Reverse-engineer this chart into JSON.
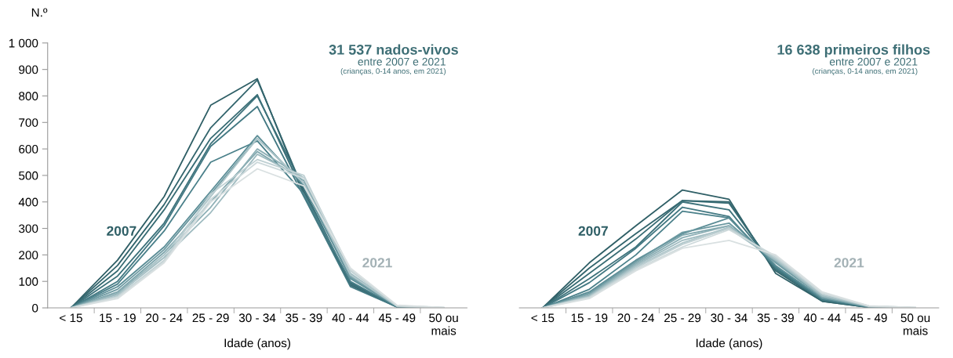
{
  "chart_data": [
    {
      "type": "line",
      "title": "31 537 nados-vivos",
      "subtitle": "entre 2007 e 2021",
      "ylabel": "N.º",
      "xlabel": "Idade (anos)",
      "annotations": [
        "(crianças, 0-14 anos, em 2021)",
        "2007",
        "2021"
      ],
      "categories": [
        "< 15",
        "15 - 19",
        "20 - 24",
        "25 - 29",
        "30 - 34",
        "35 - 39",
        "40 - 44",
        "45 - 49",
        "50 ou\nmais"
      ],
      "ylim": [
        0,
        1000
      ],
      "yticks": [
        0,
        100,
        200,
        300,
        400,
        500,
        600,
        700,
        800,
        900,
        {
          "value": 1000,
          "label": "1 000"
        }
      ],
      "grid": false,
      "legend": false,
      "marker": "none",
      "line_style": "solid",
      "series": [
        {
          "color": "#2f5f66",
          "values": [
            0,
            180,
            420,
            765,
            865,
            430,
            90,
            3,
            0
          ]
        },
        {
          "color": "#33656d",
          "values": [
            0,
            160,
            390,
            680,
            860,
            440,
            85,
            3,
            0
          ]
        },
        {
          "color": "#386c74",
          "values": [
            0,
            140,
            370,
            640,
            805,
            430,
            95,
            4,
            0
          ]
        },
        {
          "color": "#3d727b",
          "values": [
            0,
            120,
            320,
            620,
            800,
            450,
            90,
            4,
            0
          ]
        },
        {
          "color": "#437983",
          "values": [
            0,
            100,
            310,
            610,
            760,
            420,
            80,
            3,
            0
          ]
        },
        {
          "color": "#4a808a",
          "values": [
            0,
            90,
            290,
            550,
            630,
            430,
            100,
            4,
            0
          ]
        },
        {
          "color": "#5b8d96",
          "values": [
            0,
            80,
            230,
            440,
            650,
            460,
            110,
            5,
            0
          ]
        },
        {
          "color": "#6c99a1",
          "values": [
            0,
            70,
            220,
            430,
            640,
            470,
            115,
            5,
            0
          ]
        },
        {
          "color": "#7da5ac",
          "values": [
            0,
            60,
            210,
            400,
            590,
            480,
            120,
            6,
            0
          ]
        },
        {
          "color": "#8eb0b6",
          "values": [
            0,
            55,
            200,
            380,
            600,
            490,
            125,
            6,
            0
          ]
        },
        {
          "color": "#9fbbc0",
          "values": [
            0,
            50,
            190,
            360,
            580,
            490,
            130,
            7,
            0
          ]
        },
        {
          "color": "#afc6ca",
          "values": [
            0,
            45,
            200,
            420,
            640,
            470,
            125,
            7,
            0
          ]
        },
        {
          "color": "#bfd0d3",
          "values": [
            0,
            42,
            180,
            430,
            560,
            500,
            140,
            8,
            1
          ]
        },
        {
          "color": "#cdd9db",
          "values": [
            0,
            40,
            175,
            410,
            550,
            490,
            145,
            8,
            1
          ]
        },
        {
          "color": "#d9e0e1",
          "values": [
            0,
            35,
            170,
            400,
            525,
            460,
            150,
            10,
            1
          ]
        }
      ]
    },
    {
      "type": "line",
      "title": "16 638 primeiros filhos",
      "subtitle": "entre 2007 e 2021",
      "xlabel": "Idade (anos)",
      "annotations": [
        "(crianças, 0-14 anos, em 2021)",
        "2007",
        "2021"
      ],
      "categories": [
        "< 15",
        "15 - 19",
        "20 - 24",
        "25 - 29",
        "30 - 34",
        "35 - 39",
        "40 - 44",
        "45 - 49",
        "50 ou\nmais"
      ],
      "ylim": [
        0,
        1000
      ],
      "tick_labels": "x",
      "grid": false,
      "legend": false,
      "marker": "none",
      "line_style": "solid",
      "series": [
        {
          "color": "#2f5f66",
          "values": [
            0,
            170,
            310,
            445,
            410,
            130,
            25,
            2,
            0
          ]
        },
        {
          "color": "#33656d",
          "values": [
            0,
            150,
            280,
            405,
            400,
            140,
            25,
            2,
            0
          ]
        },
        {
          "color": "#386c74",
          "values": [
            0,
            130,
            260,
            405,
            395,
            145,
            30,
            2,
            0
          ]
        },
        {
          "color": "#3d727b",
          "values": [
            0,
            110,
            230,
            400,
            370,
            150,
            30,
            3,
            0
          ]
        },
        {
          "color": "#437983",
          "values": [
            0,
            95,
            225,
            380,
            345,
            150,
            30,
            3,
            0
          ]
        },
        {
          "color": "#4a808a",
          "values": [
            0,
            70,
            200,
            365,
            340,
            155,
            35,
            3,
            0
          ]
        },
        {
          "color": "#5b8d96",
          "values": [
            0,
            60,
            180,
            280,
            340,
            160,
            35,
            4,
            0
          ]
        },
        {
          "color": "#6c99a1",
          "values": [
            0,
            55,
            175,
            285,
            320,
            170,
            40,
            4,
            0
          ]
        },
        {
          "color": "#7da5ac",
          "values": [
            0,
            50,
            170,
            275,
            310,
            175,
            40,
            5,
            0
          ]
        },
        {
          "color": "#8eb0b6",
          "values": [
            0,
            48,
            165,
            265,
            310,
            180,
            45,
            5,
            0
          ]
        },
        {
          "color": "#9fbbc0",
          "values": [
            0,
            45,
            160,
            255,
            300,
            180,
            45,
            6,
            0
          ]
        },
        {
          "color": "#afc6ca",
          "values": [
            0,
            42,
            155,
            245,
            305,
            185,
            50,
            6,
            0
          ]
        },
        {
          "color": "#bfd0d3",
          "values": [
            0,
            40,
            150,
            240,
            300,
            190,
            55,
            7,
            1
          ]
        },
        {
          "color": "#cdd9db",
          "values": [
            0,
            38,
            145,
            230,
            295,
            195,
            55,
            7,
            1
          ]
        },
        {
          "color": "#d9e0e1",
          "values": [
            0,
            35,
            140,
            225,
            255,
            200,
            60,
            8,
            1
          ]
        }
      ]
    }
  ]
}
